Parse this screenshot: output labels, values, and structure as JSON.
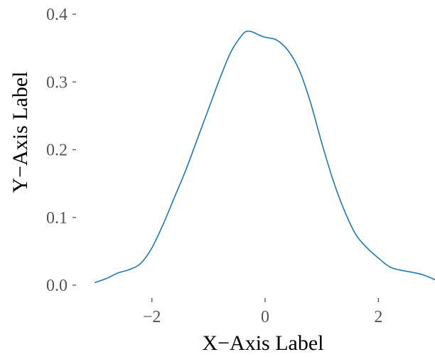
{
  "chart_data": {
    "type": "line",
    "title": "",
    "xlabel": "X−Axis Label",
    "ylabel": "Y−Axis Label",
    "xlim": [
      -3.0,
      3.0
    ],
    "ylim": [
      0.0,
      0.4
    ],
    "x_ticks": [
      -2,
      0,
      2
    ],
    "x_tick_labels": [
      "−2",
      "0",
      "2"
    ],
    "y_ticks": [
      0.0,
      0.1,
      0.2,
      0.3,
      0.4
    ],
    "y_tick_labels": [
      "0.0",
      "0.1",
      "0.2",
      "0.3",
      "0.4"
    ],
    "grid": false,
    "legend": "none",
    "color": "#1f77b4",
    "series": [
      {
        "x": [
          -3.0,
          -2.8,
          -2.6,
          -2.4,
          -2.2,
          -2.0,
          -1.8,
          -1.6,
          -1.4,
          -1.2,
          -1.0,
          -0.8,
          -0.6,
          -0.4,
          -0.3,
          -0.2,
          -0.1,
          0.0,
          0.2,
          0.4,
          0.6,
          0.8,
          1.0,
          1.2,
          1.4,
          1.6,
          1.8,
          2.0,
          2.2,
          2.4,
          2.6,
          2.8,
          3.0
        ],
        "y": [
          0.004,
          0.01,
          0.018,
          0.023,
          0.032,
          0.055,
          0.09,
          0.13,
          0.17,
          0.215,
          0.26,
          0.305,
          0.345,
          0.37,
          0.375,
          0.373,
          0.369,
          0.366,
          0.362,
          0.347,
          0.318,
          0.27,
          0.21,
          0.155,
          0.11,
          0.075,
          0.055,
          0.04,
          0.027,
          0.022,
          0.019,
          0.015,
          0.008
        ]
      }
    ]
  }
}
